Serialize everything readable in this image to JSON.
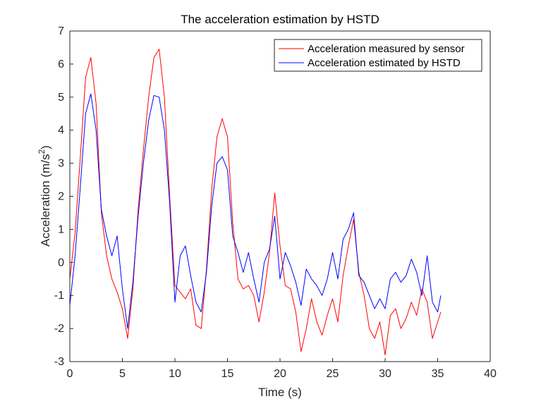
{
  "chart_data": {
    "type": "line",
    "title": "The acceleration estimation by HSTD",
    "xlabel": "Time (s)",
    "ylabel": {
      "base": "Acceleration (m/s",
      "superscript": "2",
      "close": ")"
    },
    "xlim": [
      0,
      40
    ],
    "ylim": [
      -3,
      7
    ],
    "xticks": [
      "0",
      "5",
      "10",
      "15",
      "20",
      "25",
      "30",
      "35",
      "40"
    ],
    "yticks": [
      "-3",
      "-2",
      "-1",
      "0",
      "1",
      "2",
      "3",
      "4",
      "5",
      "6",
      "7"
    ],
    "grid": false,
    "legend_position": "top-right",
    "x": [
      0.0,
      0.5,
      1.0,
      1.5,
      2.0,
      2.5,
      3.0,
      3.5,
      4.0,
      4.5,
      5.0,
      5.5,
      6.0,
      6.5,
      7.0,
      7.5,
      8.0,
      8.5,
      9.0,
      9.5,
      10.0,
      10.5,
      11.0,
      11.5,
      12.0,
      12.5,
      13.0,
      13.5,
      14.0,
      14.5,
      15.0,
      15.5,
      16.0,
      16.5,
      17.0,
      17.5,
      18.0,
      18.5,
      19.0,
      19.5,
      20.0,
      20.5,
      21.0,
      21.5,
      22.0,
      22.5,
      23.0,
      23.5,
      24.0,
      24.5,
      25.0,
      25.5,
      26.0,
      26.5,
      27.0,
      27.5,
      28.0,
      28.5,
      29.0,
      29.5,
      30.0,
      30.5,
      31.0,
      31.5,
      32.0,
      32.5,
      33.0,
      33.5,
      34.0,
      34.5,
      35.0,
      35.3
    ],
    "series": [
      {
        "name": "Acceleration measured by sensor",
        "color": "#ff0000",
        "values": [
          -0.5,
          0.9,
          3.2,
          5.6,
          6.2,
          4.8,
          1.5,
          0.2,
          -0.5,
          -0.9,
          -1.4,
          -2.3,
          -0.8,
          1.6,
          3.4,
          5.0,
          6.2,
          6.45,
          5.0,
          2.0,
          -0.7,
          -0.9,
          -1.1,
          -0.8,
          -1.9,
          -2.0,
          -0.2,
          2.2,
          3.8,
          4.35,
          3.8,
          1.2,
          -0.5,
          -0.8,
          -0.7,
          -1.0,
          -1.8,
          -0.9,
          0.3,
          2.1,
          0.5,
          -0.7,
          -0.8,
          -1.5,
          -2.7,
          -2.0,
          -1.1,
          -1.8,
          -2.2,
          -1.6,
          -1.1,
          -1.8,
          -0.4,
          0.5,
          1.3,
          -0.3,
          -1.0,
          -2.0,
          -2.3,
          -1.8,
          -2.8,
          -1.6,
          -1.4,
          -2.0,
          -1.7,
          -1.2,
          -1.6,
          -0.8,
          -1.2,
          -2.3,
          -1.8,
          -1.5
        ]
      },
      {
        "name": "Acceleration estimated by HSTD",
        "color": "#0000ff",
        "values": [
          -1.3,
          0.2,
          2.3,
          4.5,
          5.1,
          4.0,
          1.6,
          0.8,
          0.2,
          0.8,
          -0.8,
          -2.0,
          -0.6,
          1.4,
          3.0,
          4.3,
          5.05,
          5.0,
          4.0,
          1.8,
          -1.2,
          0.2,
          0.5,
          -0.4,
          -1.2,
          -1.5,
          -0.3,
          1.7,
          3.0,
          3.2,
          2.8,
          0.8,
          0.3,
          -0.3,
          0.3,
          -0.5,
          -1.2,
          0.0,
          0.4,
          1.4,
          -0.5,
          0.3,
          -0.1,
          -0.6,
          -1.3,
          -0.2,
          -0.5,
          -0.7,
          -1.0,
          -0.5,
          0.3,
          -0.5,
          0.7,
          1.0,
          1.5,
          -0.4,
          -0.6,
          -1.0,
          -1.4,
          -1.1,
          -1.4,
          -0.5,
          -0.3,
          -0.6,
          -0.4,
          0.1,
          -0.3,
          -1.0,
          0.2,
          -1.2,
          -1.5,
          -1.0
        ]
      }
    ]
  }
}
